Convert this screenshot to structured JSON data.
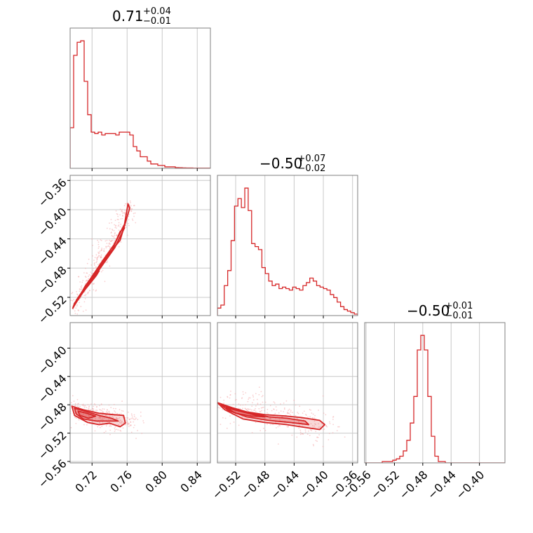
{
  "chart_data": {
    "type": "corner",
    "color": "#d62728",
    "fill_color": "#f4a9ab",
    "grid": true,
    "parameters": [
      {
        "title": {
          "median": "0.71",
          "plus": "+0.04",
          "minus": "−0.01"
        },
        "range": [
          0.695,
          0.855
        ],
        "ticks": [
          0.72,
          0.76,
          0.8,
          0.84
        ],
        "tick_labels": [
          "0.72",
          "0.76",
          "0.80",
          "0.84"
        ],
        "hist": [
          0.28,
          0.78,
          0.87,
          0.88,
          0.6,
          0.37,
          0.25,
          0.24,
          0.25,
          0.23,
          0.24,
          0.24,
          0.24,
          0.23,
          0.25,
          0.25,
          0.25,
          0.23,
          0.15,
          0.12,
          0.08,
          0.08,
          0.05,
          0.03,
          0.03,
          0.02,
          0.02,
          0.01,
          0.01,
          0.01,
          0.005,
          0.004,
          0.003,
          0.002,
          0.002,
          0.001,
          0.001,
          0.001,
          0.001,
          0.001
        ]
      },
      {
        "title": {
          "median": "−0.50",
          "plus": "+0.07",
          "minus": "−0.02"
        },
        "range": [
          -0.545,
          -0.353
        ],
        "ticks": [
          -0.52,
          -0.48,
          -0.44,
          -0.4,
          -0.36
        ],
        "tick_labels": [
          "−0.52",
          "−0.48",
          "−0.44",
          "−0.40",
          "−0.36"
        ],
        "y_ticks": [
          -0.52,
          -0.48,
          -0.44,
          -0.4,
          -0.36
        ],
        "y_tick_labels": [
          "−0.52",
          "−0.48",
          "−0.44",
          "−0.40",
          "−0.36"
        ],
        "hist": [
          0.05,
          0.07,
          0.2,
          0.3,
          0.5,
          0.73,
          0.78,
          0.72,
          0.85,
          0.7,
          0.48,
          0.46,
          0.44,
          0.32,
          0.28,
          0.23,
          0.2,
          0.21,
          0.18,
          0.19,
          0.18,
          0.17,
          0.19,
          0.18,
          0.17,
          0.2,
          0.22,
          0.25,
          0.23,
          0.2,
          0.19,
          0.18,
          0.17,
          0.14,
          0.12,
          0.09,
          0.06,
          0.04,
          0.03,
          0.02,
          0.01
        ]
      },
      {
        "title": {
          "median": "−0.50",
          "plus": "+0.01",
          "minus": "−0.01"
        },
        "range": [
          -0.562,
          -0.364
        ],
        "ticks": [
          -0.56,
          -0.52,
          -0.48,
          -0.44,
          -0.4
        ],
        "tick_labels": [
          "−0.56",
          "−0.52",
          "−0.48",
          "−0.44",
          "−0.40"
        ],
        "y_ticks": [
          -0.56,
          -0.52,
          -0.48,
          -0.44,
          -0.4
        ],
        "y_tick_labels": [
          "−0.56",
          "−0.52",
          "−0.48",
          "−0.44",
          "−0.40"
        ],
        "hist": [
          0.0,
          0.0,
          0.0,
          0.0,
          0.0,
          0.01,
          0.01,
          0.01,
          0.02,
          0.03,
          0.05,
          0.09,
          0.17,
          0.3,
          0.5,
          0.85,
          0.96,
          0.85,
          0.5,
          0.2,
          0.05,
          0.01,
          0.01,
          0.0,
          0.0,
          0.0,
          0.0,
          0.0,
          0.0,
          0.0,
          0.0,
          0.0,
          0.0,
          0.0,
          0.0,
          0.0,
          0.0,
          0.0,
          0.0,
          0.0
        ]
      }
    ],
    "panels_2d": [
      {
        "x_param": 0,
        "y_param": 1,
        "trend": {
          "x": [
            0.697,
            0.765
          ],
          "y": [
            -0.537,
            -0.393
          ]
        },
        "spread_x": 0.012,
        "levels": [
          [
            [
              0.698,
              -0.535
            ],
            [
              0.703,
              -0.525
            ],
            [
              0.712,
              -0.505
            ],
            [
              0.724,
              -0.485
            ],
            [
              0.738,
              -0.462
            ],
            [
              0.752,
              -0.442
            ],
            [
              0.763,
              -0.398
            ],
            [
              0.761,
              -0.392
            ],
            [
              0.757,
              -0.42
            ],
            [
              0.745,
              -0.448
            ],
            [
              0.732,
              -0.47
            ],
            [
              0.718,
              -0.495
            ],
            [
              0.708,
              -0.515
            ],
            [
              0.7,
              -0.528
            ]
          ],
          [
            [
              0.7,
              -0.53
            ],
            [
              0.706,
              -0.52
            ],
            [
              0.716,
              -0.5
            ],
            [
              0.728,
              -0.48
            ],
            [
              0.742,
              -0.458
            ],
            [
              0.752,
              -0.43
            ],
            [
              0.757,
              -0.425
            ],
            [
              0.746,
              -0.452
            ],
            [
              0.733,
              -0.474
            ],
            [
              0.72,
              -0.496
            ],
            [
              0.708,
              -0.516
            ],
            [
              0.702,
              -0.526
            ]
          ],
          [
            [
              0.702,
              -0.524
            ],
            [
              0.71,
              -0.51
            ],
            [
              0.72,
              -0.494
            ],
            [
              0.728,
              -0.484
            ],
            [
              0.725,
              -0.49
            ],
            [
              0.715,
              -0.505
            ],
            [
              0.706,
              -0.518
            ]
          ]
        ]
      },
      {
        "x_param": 0,
        "y_param": 2,
        "trend": {
          "x": [
            0.697,
            0.76
          ],
          "y": [
            -0.485,
            -0.505
          ]
        },
        "spread_x": 0.02,
        "levels": [
          [
            [
              0.697,
              -0.482
            ],
            [
              0.71,
              -0.487
            ],
            [
              0.728,
              -0.492
            ],
            [
              0.745,
              -0.494
            ],
            [
              0.756,
              -0.495
            ],
            [
              0.758,
              -0.506
            ],
            [
              0.752,
              -0.511
            ],
            [
              0.74,
              -0.506
            ],
            [
              0.728,
              -0.508
            ],
            [
              0.715,
              -0.505
            ],
            [
              0.7,
              -0.495
            ]
          ],
          [
            [
              0.7,
              -0.485
            ],
            [
              0.712,
              -0.489
            ],
            [
              0.728,
              -0.495
            ],
            [
              0.742,
              -0.499
            ],
            [
              0.75,
              -0.503
            ],
            [
              0.738,
              -0.503
            ],
            [
              0.725,
              -0.503
            ],
            [
              0.71,
              -0.5
            ],
            [
              0.702,
              -0.493
            ]
          ],
          [
            [
              0.704,
              -0.489
            ],
            [
              0.714,
              -0.492
            ],
            [
              0.724,
              -0.496
            ],
            [
              0.716,
              -0.499
            ],
            [
              0.706,
              -0.495
            ]
          ]
        ]
      },
      {
        "x_param": 1,
        "y_param": 2,
        "trend": {
          "x": [
            -0.545,
            -0.395
          ],
          "y": [
            -0.478,
            -0.512
          ]
        },
        "spread_x": 0.03,
        "levels": [
          [
            [
              -0.545,
              -0.477
            ],
            [
              -0.525,
              -0.484
            ],
            [
              -0.505,
              -0.49
            ],
            [
              -0.48,
              -0.494
            ],
            [
              -0.45,
              -0.496
            ],
            [
              -0.43,
              -0.498
            ],
            [
              -0.405,
              -0.502
            ],
            [
              -0.398,
              -0.508
            ],
            [
              -0.405,
              -0.515
            ],
            [
              -0.425,
              -0.512
            ],
            [
              -0.45,
              -0.508
            ],
            [
              -0.48,
              -0.505
            ],
            [
              -0.51,
              -0.5
            ],
            [
              -0.535,
              -0.487
            ]
          ],
          [
            [
              -0.54,
              -0.48
            ],
            [
              -0.52,
              -0.487
            ],
            [
              -0.5,
              -0.492
            ],
            [
              -0.475,
              -0.497
            ],
            [
              -0.45,
              -0.499
            ],
            [
              -0.425,
              -0.503
            ],
            [
              -0.42,
              -0.508
            ],
            [
              -0.445,
              -0.505
            ],
            [
              -0.475,
              -0.502
            ],
            [
              -0.505,
              -0.497
            ],
            [
              -0.53,
              -0.488
            ]
          ],
          [
            [
              -0.533,
              -0.484
            ],
            [
              -0.515,
              -0.489
            ],
            [
              -0.495,
              -0.494
            ],
            [
              -0.48,
              -0.497
            ],
            [
              -0.498,
              -0.496
            ],
            [
              -0.52,
              -0.492
            ]
          ]
        ]
      }
    ]
  }
}
